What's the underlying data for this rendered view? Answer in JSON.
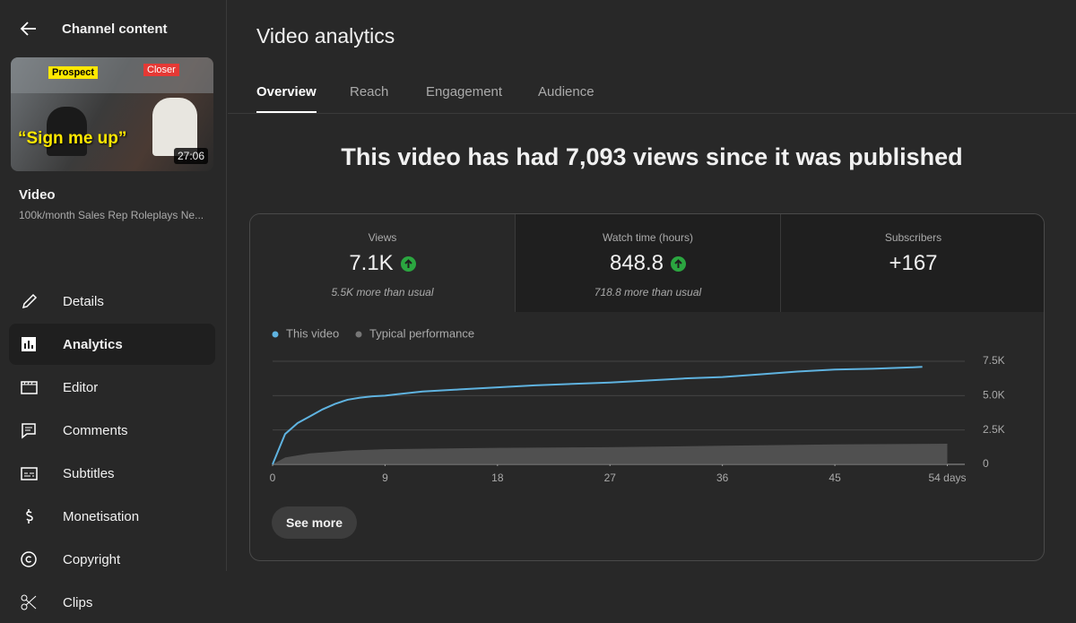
{
  "sidebar": {
    "back_title": "Channel content",
    "thumbnail": {
      "tag_left": "Prospect",
      "tag_right": "Closer",
      "caption": "“Sign me up”",
      "duration": "27:06"
    },
    "video_label": "Video",
    "video_title": "100k/month Sales Rep Roleplays Ne...",
    "nav": [
      "Details",
      "Analytics",
      "Editor",
      "Comments",
      "Subtitles",
      "Monetisation",
      "Copyright",
      "Clips"
    ],
    "active_nav": 1
  },
  "header": {
    "title": "Video analytics",
    "tabs": [
      "Overview",
      "Reach",
      "Engagement",
      "Audience"
    ],
    "active_tab": 0
  },
  "headline": "This video has had 7,093 views since it was published",
  "metrics": [
    {
      "label": "Views",
      "value": "7.1K",
      "trend": "up",
      "note": "5.5K more than usual"
    },
    {
      "label": "Watch time (hours)",
      "value": "848.8",
      "trend": "up",
      "note": "718.8 more than usual"
    },
    {
      "label": "Subscribers",
      "value": "+167"
    }
  ],
  "chart_data": {
    "type": "line",
    "series": [
      {
        "name": "This video",
        "color": "#5fb3e0",
        "x": [
          0,
          1,
          2,
          3,
          4,
          5,
          6,
          7,
          8,
          9,
          10,
          12,
          15,
          18,
          21,
          24,
          27,
          30,
          33,
          36,
          39,
          42,
          45,
          48,
          51,
          52
        ],
        "values": [
          0,
          2200,
          3000,
          3500,
          4000,
          4400,
          4700,
          4850,
          4950,
          5000,
          5100,
          5300,
          5450,
          5600,
          5750,
          5850,
          5950,
          6100,
          6250,
          6350,
          6550,
          6750,
          6900,
          6950,
          7050,
          7093
        ]
      },
      {
        "name": "Typical performance",
        "color": "#5a5a5a",
        "x": [
          0,
          1,
          3,
          6,
          9,
          18,
          27,
          36,
          45,
          54
        ],
        "values": [
          0,
          500,
          800,
          1000,
          1100,
          1200,
          1250,
          1350,
          1450,
          1500
        ]
      }
    ],
    "xlim": [
      0,
      55.4
    ],
    "xticks": [
      0,
      9,
      18,
      27,
      36,
      45,
      {
        "value": 54,
        "label": "54 days"
      }
    ],
    "ylim": [
      0,
      7500
    ],
    "yticks": [
      0,
      {
        "value": 2500,
        "label": "2.5K"
      },
      {
        "value": 5000,
        "label": "5.0K"
      },
      {
        "value": 7500,
        "label": "7.5K"
      }
    ],
    "grid": true
  },
  "see_more": "See more"
}
